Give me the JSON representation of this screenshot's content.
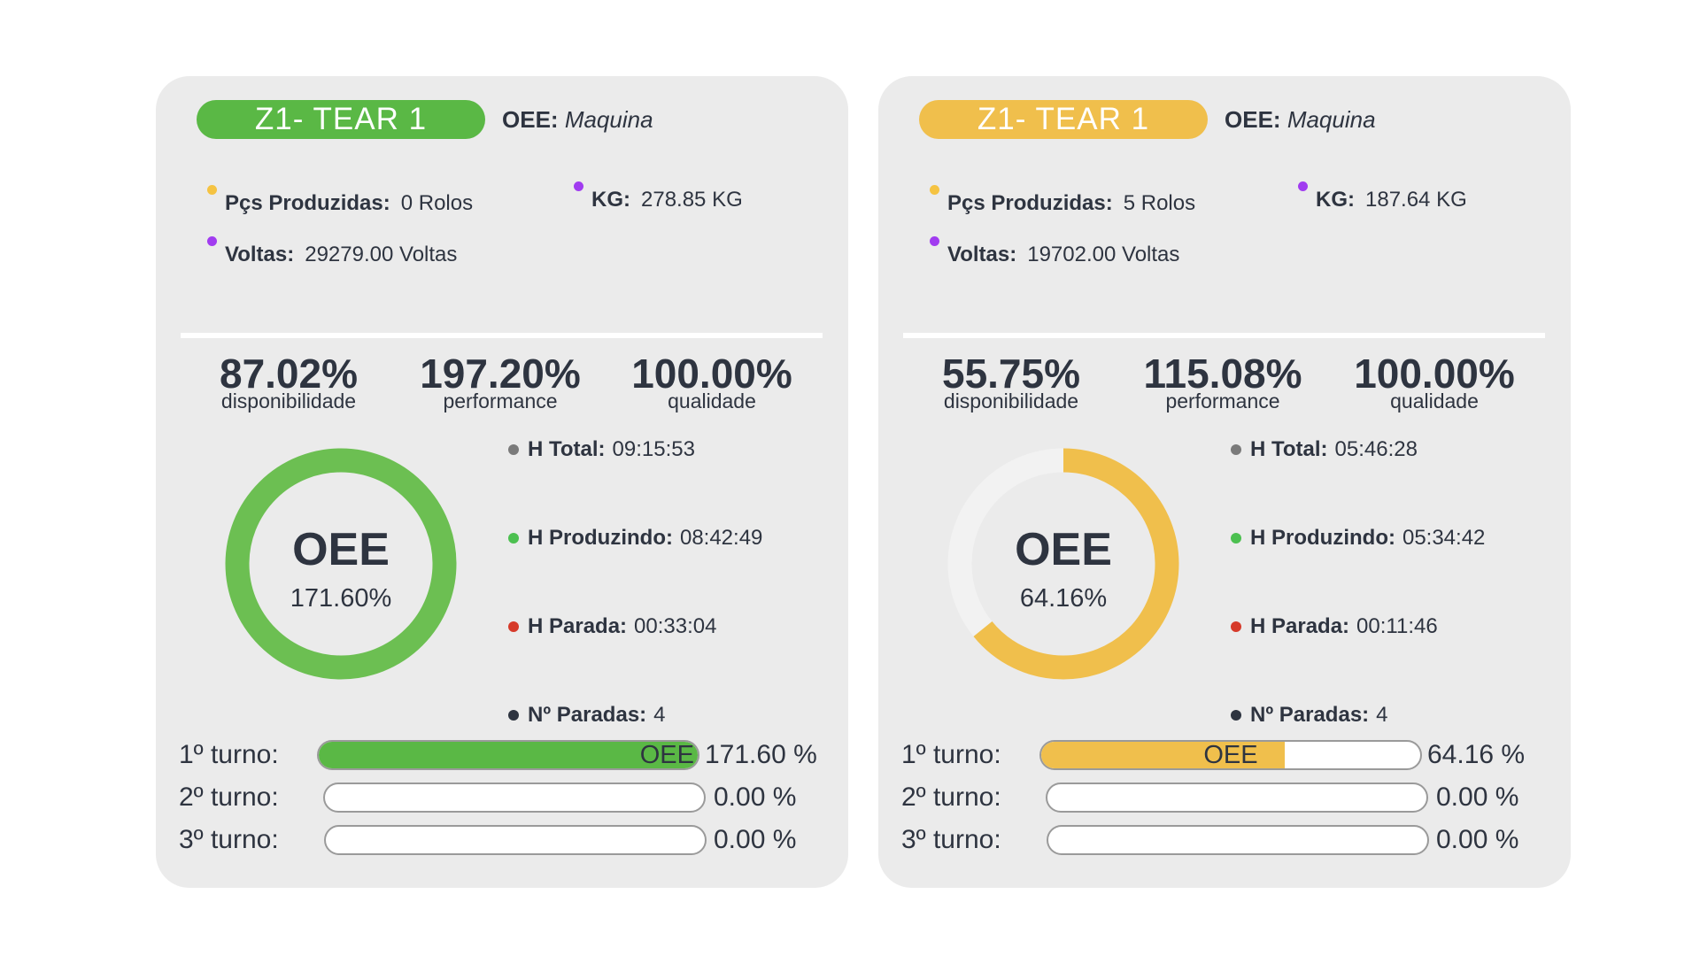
{
  "colors": {
    "green": "#5ab845",
    "ring_green": "#6cbf52",
    "yellow": "#f0bf4c",
    "track": "#f2f2f2",
    "dot_yellow": "#f5c342",
    "dot_purple": "#a13cf0",
    "dot_gray": "#7a7a7a",
    "dot_green": "#4cc050",
    "dot_red": "#d63a2a",
    "dot_dark": "#2e3440"
  },
  "cards": [
    {
      "name": "Z1- TEAR 1",
      "accent": "#5ab845",
      "ring_color": "#6cbf52",
      "oee_label": "OEE:",
      "oee_source": "Maquina",
      "pcs_label": "Pçs Produzidas:",
      "pcs_value": "0 Rolos",
      "kg_label": "KG:",
      "kg_value": "278.85 KG",
      "voltas_label": "Voltas:",
      "voltas_value": "29279.00 Voltas",
      "metrics": [
        {
          "value": "87.02%",
          "caption": "disponibilidade"
        },
        {
          "value": "197.20%",
          "caption": "performance"
        },
        {
          "value": "100.00%",
          "caption": "qualidade"
        }
      ],
      "donut_title": "OEE",
      "donut_value": "171.60%",
      "donut_fraction": 1.0,
      "hours": [
        {
          "label": "H Total:",
          "value": "09:15:53",
          "dot": "#7a7a7a"
        },
        {
          "label": "H Produzindo:",
          "value": "08:42:49",
          "dot": "#4cc050"
        },
        {
          "label": "H Parada:",
          "value": "00:33:04",
          "dot": "#d63a2a"
        },
        {
          "label": "Nº Paradas:",
          "value": "4",
          "dot": "#2e3440"
        }
      ],
      "shifts": [
        {
          "label": "1º turno:",
          "bar_text": "OEE",
          "pct": "171.60 %",
          "fill": 1.0
        },
        {
          "label": "2º turno:",
          "bar_text": "",
          "pct": "0.00 %",
          "fill": 0
        },
        {
          "label": "3º turno:",
          "bar_text": "",
          "pct": "0.00 %",
          "fill": 0
        }
      ]
    },
    {
      "name": "Z1- TEAR 1",
      "accent": "#f0bf4c",
      "ring_color": "#f0bf4c",
      "oee_label": "OEE:",
      "oee_source": "Maquina",
      "pcs_label": "Pçs Produzidas:",
      "pcs_value": "5 Rolos",
      "kg_label": "KG:",
      "kg_value": "187.64 KG",
      "voltas_label": "Voltas:",
      "voltas_value": "19702.00 Voltas",
      "metrics": [
        {
          "value": "55.75%",
          "caption": "disponibilidade"
        },
        {
          "value": "115.08%",
          "caption": "performance"
        },
        {
          "value": "100.00%",
          "caption": "qualidade"
        }
      ],
      "donut_title": "OEE",
      "donut_value": "64.16%",
      "donut_fraction": 0.6416,
      "hours": [
        {
          "label": "H Total:",
          "value": "05:46:28",
          "dot": "#7a7a7a"
        },
        {
          "label": "H Produzindo:",
          "value": "05:34:42",
          "dot": "#4cc050"
        },
        {
          "label": "H Parada:",
          "value": "00:11:46",
          "dot": "#d63a2a"
        },
        {
          "label": "Nº Paradas:",
          "value": "4",
          "dot": "#2e3440"
        }
      ],
      "shifts": [
        {
          "label": "1º turno:",
          "bar_text": "OEE",
          "pct": "64.16 %",
          "fill": 0.6416
        },
        {
          "label": "2º turno:",
          "bar_text": "",
          "pct": "0.00 %",
          "fill": 0
        },
        {
          "label": "3º turno:",
          "bar_text": "",
          "pct": "0.00 %",
          "fill": 0
        }
      ]
    }
  ]
}
